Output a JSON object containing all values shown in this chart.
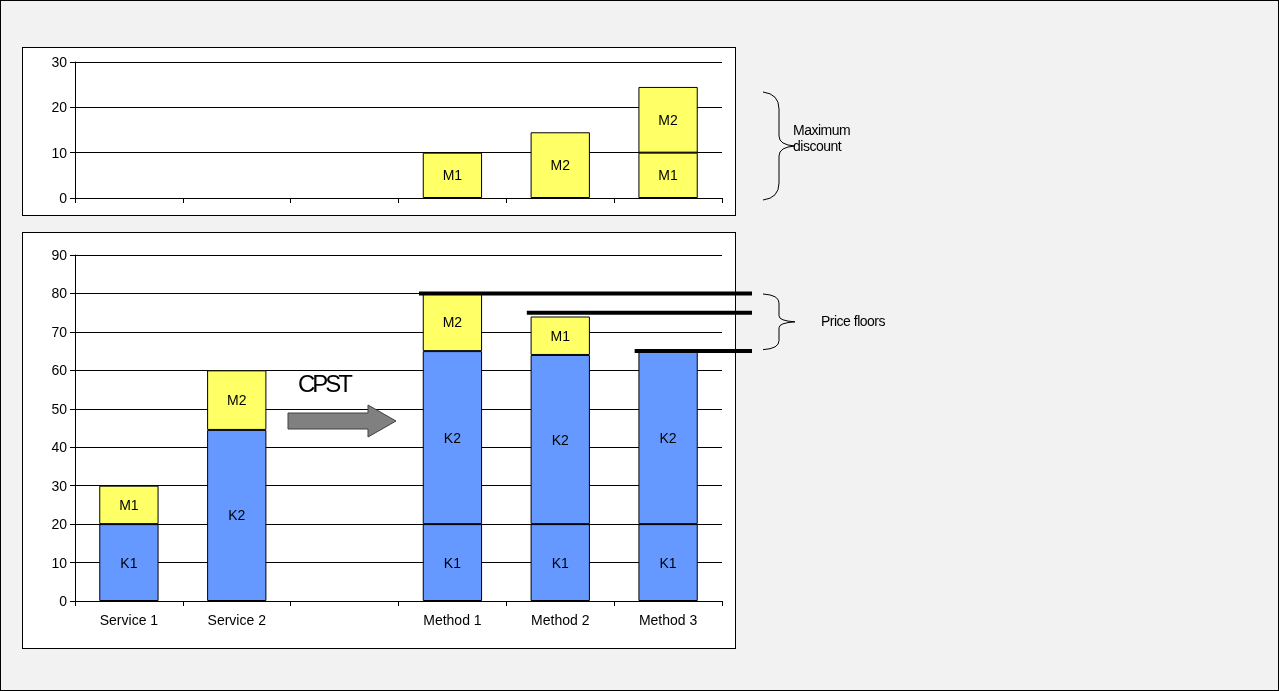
{
  "chart_data": [
    {
      "type": "bar",
      "stacked": true,
      "categories": [
        null,
        null,
        null,
        null,
        null,
        null
      ],
      "grid": "y",
      "ylim": [
        0,
        30
      ],
      "yticks": [
        0,
        10,
        20,
        30
      ],
      "series": [
        {
          "name": "M1",
          "color": "#ffff66",
          "values": [
            null,
            null,
            null,
            10,
            null,
            10
          ]
        },
        {
          "name": "M2",
          "color": "#ffff66",
          "values": [
            null,
            null,
            null,
            null,
            14.5,
            14.5
          ]
        }
      ],
      "annotations": [
        "Maximum discount"
      ]
    },
    {
      "type": "bar",
      "stacked": true,
      "categories": [
        "Service 1",
        "Service 2",
        null,
        "Method 1",
        "Method 2",
        "Method 3"
      ],
      "grid": "y",
      "ylim": [
        0,
        90
      ],
      "yticks": [
        0,
        10,
        20,
        30,
        40,
        50,
        60,
        70,
        80,
        90
      ],
      "series": [
        {
          "name": "K1",
          "color": "#6699ff",
          "values": [
            20,
            null,
            null,
            20,
            20,
            20
          ]
        },
        {
          "name": "K2",
          "color": "#6699ff",
          "values": [
            null,
            44.5,
            null,
            45,
            44,
            45
          ]
        },
        {
          "name": "M1",
          "color": "#ffff66",
          "values": [
            10,
            null,
            null,
            null,
            10,
            null
          ]
        },
        {
          "name": "M2",
          "color": "#ffff66",
          "values": [
            null,
            15.5,
            null,
            15,
            null,
            null
          ]
        }
      ],
      "ref_lines": [
        {
          "axis": "y",
          "value": 80,
          "color": "#000000"
        },
        {
          "axis": "y",
          "value": 75,
          "color": "#000000"
        },
        {
          "axis": "y",
          "value": 65,
          "color": "#000000"
        }
      ],
      "annotations": [
        "CPST",
        "Price floors"
      ]
    }
  ]
}
